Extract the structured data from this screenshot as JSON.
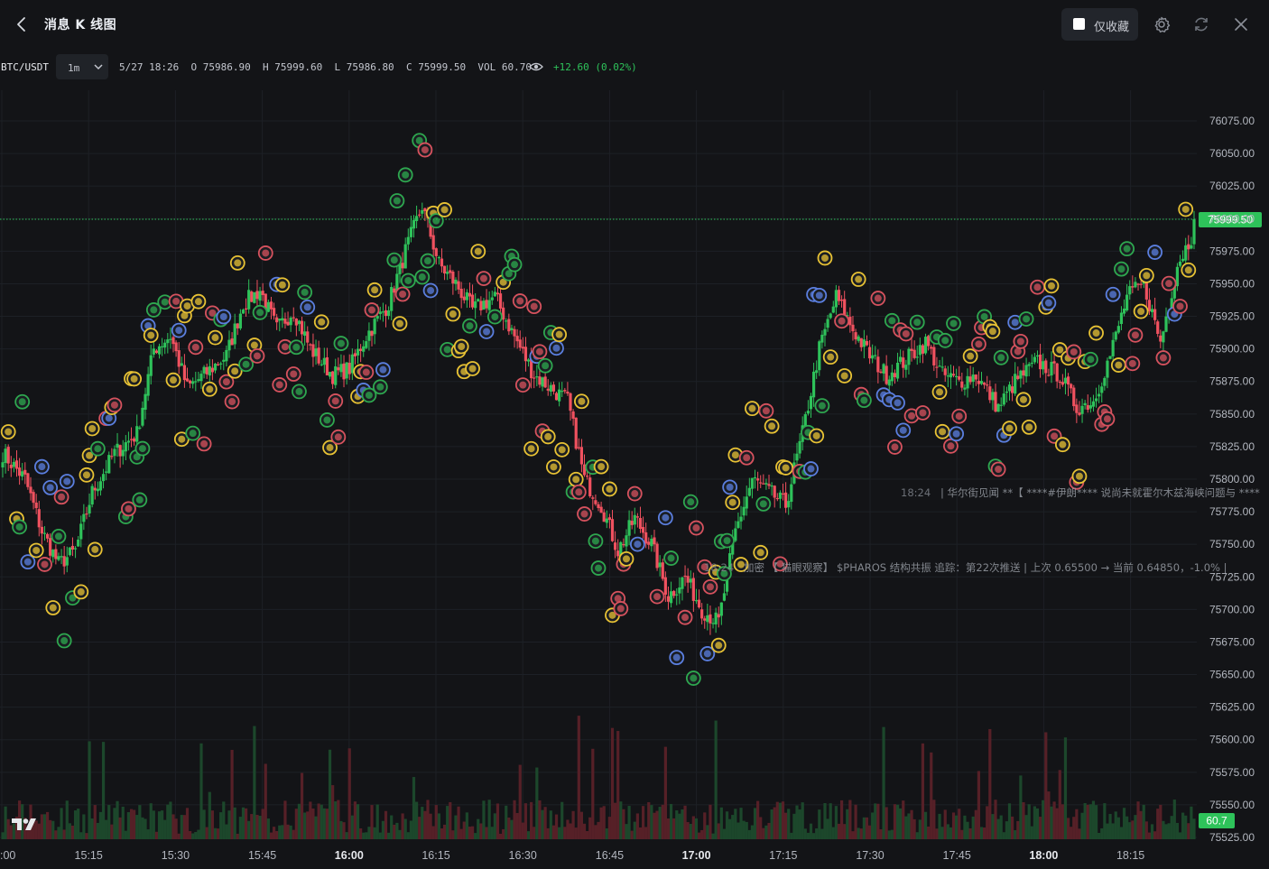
{
  "header": {
    "title": "消息 K 线图",
    "favorites_only_label": "仅收藏",
    "icons": [
      "chevron-left-icon",
      "gear-icon",
      "refresh-icon",
      "close-icon"
    ]
  },
  "infobar": {
    "symbol": "BTC/USDT",
    "interval": "1m",
    "date_time": "5/27 18:26",
    "open_label": "O",
    "open": "75986.90",
    "high_label": "H",
    "high": "75999.60",
    "low_label": "L",
    "low": "75986.80",
    "close_label": "C",
    "close": "75999.50",
    "volume_label": "VOL",
    "volume": "60.70",
    "change": "+12.60 (0.02%)"
  },
  "colors": {
    "up": "#2ec25a",
    "down": "#f0515f",
    "marker_gold": "#e8c234",
    "marker_red": "#d7525e",
    "marker_green": "#2ea84f",
    "marker_blue": "#5b7fe0"
  },
  "chart_data": {
    "type": "candlestick",
    "ylim": [
      75525,
      76075
    ],
    "y_ticks": [
      "76075.00",
      "76050.00",
      "76025.00",
      "76000.00",
      "75975.00",
      "75950.00",
      "75925.00",
      "75900.00",
      "75875.00",
      "75850.00",
      "75825.00",
      "75800.00",
      "75775.00",
      "75750.00",
      "75725.00",
      "75700.00",
      "75675.00",
      "75650.00",
      "75625.00",
      "75600.00",
      "75575.00",
      "75550.00",
      "75525.00"
    ],
    "x_ticks": [
      ":00",
      "15:15",
      "15:30",
      "15:45",
      "16:00",
      "16:15",
      "16:30",
      "16:45",
      "17:00",
      "17:15",
      "17:30",
      "17:45",
      "18:00",
      "18:15"
    ],
    "bold_x_ticks": [
      "16:00",
      "17:00",
      "18:00"
    ],
    "last_price_label": "75999.50",
    "last_price": 75999.5,
    "last_volume_label": "60.7",
    "anchors": [
      [
        0,
        75820
      ],
      [
        8,
        75800
      ],
      [
        14,
        75760
      ],
      [
        20,
        75735
      ],
      [
        26,
        75745
      ],
      [
        32,
        75790
      ],
      [
        40,
        75820
      ],
      [
        48,
        75835
      ],
      [
        54,
        75900
      ],
      [
        60,
        75910
      ],
      [
        66,
        75870
      ],
      [
        72,
        75880
      ],
      [
        80,
        75895
      ],
      [
        86,
        75935
      ],
      [
        92,
        75945
      ],
      [
        98,
        75915
      ],
      [
        104,
        75930
      ],
      [
        110,
        75900
      ],
      [
        118,
        75880
      ],
      [
        124,
        75885
      ],
      [
        130,
        75910
      ],
      [
        138,
        75935
      ],
      [
        144,
        75975
      ],
      [
        150,
        76010
      ],
      [
        156,
        75965
      ],
      [
        162,
        75950
      ],
      [
        168,
        75930
      ],
      [
        176,
        75940
      ],
      [
        184,
        75905
      ],
      [
        190,
        75880
      ],
      [
        196,
        75870
      ],
      [
        202,
        75860
      ],
      [
        208,
        75800
      ],
      [
        214,
        75780
      ],
      [
        220,
        75745
      ],
      [
        226,
        75770
      ],
      [
        232,
        75750
      ],
      [
        238,
        75710
      ],
      [
        244,
        75725
      ],
      [
        250,
        75700
      ],
      [
        256,
        75690
      ],
      [
        262,
        75760
      ],
      [
        268,
        75800
      ],
      [
        274,
        75790
      ],
      [
        280,
        75780
      ],
      [
        286,
        75835
      ],
      [
        292,
        75900
      ],
      [
        298,
        75940
      ],
      [
        304,
        75915
      ],
      [
        310,
        75895
      ],
      [
        316,
        75880
      ],
      [
        322,
        75890
      ],
      [
        330,
        75905
      ],
      [
        336,
        75880
      ],
      [
        342,
        75875
      ],
      [
        348,
        75880
      ],
      [
        356,
        75855
      ],
      [
        362,
        75875
      ],
      [
        370,
        75890
      ],
      [
        378,
        75880
      ],
      [
        384,
        75855
      ],
      [
        390,
        75860
      ],
      [
        396,
        75895
      ],
      [
        402,
        75940
      ],
      [
        408,
        75950
      ],
      [
        414,
        75905
      ],
      [
        420,
        75965
      ],
      [
        426,
        75990
      ]
    ],
    "note_series": "candles derived from anchor path; volume bars at bottom"
  },
  "news_overlays": [
    {
      "time": "18:24",
      "text": "| 华尔街见闻 **【 ****#伊朗**** 说尚未就霍尔木兹海峡问题与 ****"
    },
    {
      "time": "18:24",
      "text": "加密 【 猫眼观察】 $PHAROS 结构共振 追踪：第22次推送 | 上次 0.65500 → 当前 0.64850，-1.0% |"
    }
  ]
}
